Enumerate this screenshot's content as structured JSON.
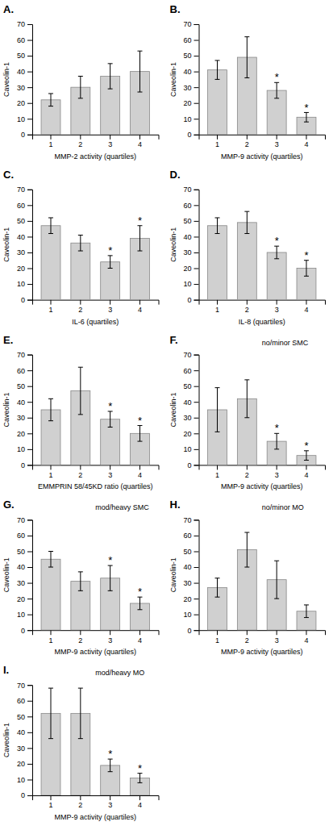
{
  "chart_data": [
    {
      "type": "bar",
      "title": "A.",
      "xlabel": "MMP-2 activity (quartiles)",
      "ylabel": "Caveolin-1",
      "categories": [
        "1",
        "2",
        "3",
        "4"
      ],
      "values": [
        22,
        30,
        37,
        40
      ],
      "errors": [
        4,
        7,
        8,
        13
      ],
      "color": "#d0d0d0",
      "ylim": [
        0,
        70
      ],
      "yticks": [
        0,
        10,
        20,
        30,
        40,
        50,
        60,
        70
      ],
      "grid": false,
      "annotations": []
    },
    {
      "type": "bar",
      "title": "B.",
      "xlabel": "MMP-9 activity (quartiles)",
      "ylabel": "Caveolin-1",
      "categories": [
        "1",
        "2",
        "3",
        "4"
      ],
      "values": [
        41,
        49,
        28,
        11
      ],
      "errors": [
        6,
        13,
        5,
        3
      ],
      "color": "#d0d0d0",
      "ylim": [
        0,
        70
      ],
      "yticks": [
        0,
        10,
        20,
        30,
        40,
        50,
        60,
        70
      ],
      "grid": false,
      "annotations": [
        {
          "text": "*",
          "x": "3"
        },
        {
          "text": "*",
          "x": "4"
        }
      ]
    },
    {
      "type": "bar",
      "title": "C.",
      "xlabel": "IL-6 (quartiles)",
      "ylabel": "Caveolin-1",
      "categories": [
        "1",
        "2",
        "3",
        "4"
      ],
      "values": [
        47,
        36,
        24,
        39
      ],
      "errors": [
        5,
        5,
        4,
        8
      ],
      "color": "#d0d0d0",
      "ylim": [
        0,
        70
      ],
      "yticks": [
        0,
        10,
        20,
        30,
        40,
        50,
        60,
        70
      ],
      "grid": false,
      "annotations": [
        {
          "text": "*",
          "x": "3"
        },
        {
          "text": "*",
          "x": "4"
        }
      ]
    },
    {
      "type": "bar",
      "title": "D.",
      "xlabel": "IL-8 (quartiles)",
      "ylabel": "Caveolin-1",
      "categories": [
        "1",
        "2",
        "3",
        "4"
      ],
      "values": [
        47,
        49,
        30,
        20
      ],
      "errors": [
        5,
        7,
        4,
        5
      ],
      "color": "#d0d0d0",
      "ylim": [
        0,
        70
      ],
      "yticks": [
        0,
        10,
        20,
        30,
        40,
        50,
        60,
        70
      ],
      "grid": false,
      "annotations": [
        {
          "text": "*",
          "x": "3"
        },
        {
          "text": "*",
          "x": "4"
        }
      ]
    },
    {
      "type": "bar",
      "title": "E.",
      "xlabel": "EMMPRIN 58/45KD ratio (quartiles)",
      "ylabel": "Caveolin-1",
      "categories": [
        "1",
        "2",
        "3",
        "4"
      ],
      "values": [
        35,
        47,
        29,
        20
      ],
      "errors": [
        7,
        15,
        5,
        5
      ],
      "color": "#d0d0d0",
      "ylim": [
        0,
        70
      ],
      "yticks": [
        0,
        10,
        20,
        30,
        40,
        50,
        60,
        70
      ],
      "grid": false,
      "annotations": [
        {
          "text": "*",
          "x": "3"
        },
        {
          "text": "*",
          "x": "4"
        }
      ]
    },
    {
      "type": "bar",
      "title": "F.",
      "subtitle": "no/minor SMC",
      "xlabel": "MMP-9 activity (quartiles)",
      "ylabel": "Caveolin-1",
      "categories": [
        "1",
        "2",
        "3",
        "4"
      ],
      "values": [
        35,
        42,
        15,
        6
      ],
      "errors": [
        14,
        12,
        5,
        3
      ],
      "color": "#d0d0d0",
      "ylim": [
        0,
        70
      ],
      "yticks": [
        0,
        10,
        20,
        30,
        40,
        50,
        60,
        70
      ],
      "grid": false,
      "annotations": [
        {
          "text": "*",
          "x": "3"
        },
        {
          "text": "*",
          "x": "4"
        }
      ]
    },
    {
      "type": "bar",
      "title": "G.",
      "subtitle": "mod/heavy SMC",
      "xlabel": "MMP-9 activity (quartiles)",
      "ylabel": "Caveolin-1",
      "categories": [
        "1",
        "2",
        "3",
        "4"
      ],
      "values": [
        45,
        31,
        33,
        17
      ],
      "errors": [
        5,
        6,
        8,
        4
      ],
      "color": "#d0d0d0",
      "ylim": [
        0,
        70
      ],
      "yticks": [
        0,
        10,
        20,
        30,
        40,
        50,
        60,
        70
      ],
      "grid": false,
      "annotations": [
        {
          "text": "*",
          "x": "3"
        },
        {
          "text": "*",
          "x": "4"
        }
      ]
    },
    {
      "type": "bar",
      "title": "H.",
      "subtitle": "no/minor MO",
      "xlabel": "MMP-9 activity (quartiles)",
      "ylabel": "Caveolin-1",
      "categories": [
        "1",
        "2",
        "3",
        "4"
      ],
      "values": [
        27,
        51,
        32,
        12
      ],
      "errors": [
        6,
        11,
        12,
        4
      ],
      "color": "#d0d0d0",
      "ylim": [
        0,
        70
      ],
      "yticks": [
        0,
        10,
        20,
        30,
        40,
        50,
        60,
        70
      ],
      "grid": false,
      "annotations": []
    },
    {
      "type": "bar",
      "title": "I.",
      "subtitle": "mod/heavy MO",
      "xlabel": "MMP-9 activity (quartiles)",
      "ylabel": "Caveolin-1",
      "categories": [
        "1",
        "2",
        "3",
        "4"
      ],
      "values": [
        52,
        52,
        19,
        11
      ],
      "errors": [
        16,
        16,
        4,
        3
      ],
      "color": "#d0d0d0",
      "ylim": [
        0,
        70
      ],
      "yticks": [
        0,
        10,
        20,
        30,
        40,
        50,
        60,
        70
      ],
      "grid": false,
      "annotations": [
        {
          "text": "*",
          "x": "3"
        },
        {
          "text": "*",
          "x": "4"
        }
      ]
    }
  ]
}
